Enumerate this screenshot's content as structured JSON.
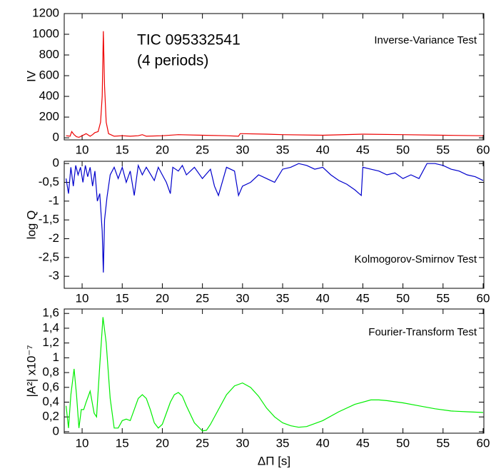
{
  "chart_data": [
    {
      "type": "line",
      "ylabel": "IV",
      "annotations": [
        "TIC 095332541",
        "(4 periods)",
        "Inverse-Variance Test"
      ],
      "xlim": [
        7.77,
        60.09
      ],
      "xticks": [
        10,
        15,
        20,
        25,
        30,
        35,
        40,
        45,
        50,
        55,
        60
      ],
      "ylim": [
        -20,
        1200
      ],
      "yticks": [
        0,
        200,
        400,
        600,
        800,
        1000,
        1200
      ],
      "series": [
        {
          "color": "#ee0000",
          "x": [
            8,
            8.5,
            8.7,
            9,
            9.3,
            9.6,
            10,
            10.5,
            11,
            11.3,
            11.6,
            12,
            12.3,
            12.5,
            12.65,
            12.8,
            13,
            13.3,
            14,
            15,
            16,
            17,
            17.5,
            18,
            20,
            22,
            25,
            28,
            29.5,
            29.7,
            30,
            33,
            35,
            40,
            45,
            50,
            55,
            60
          ],
          "values": [
            20,
            15,
            60,
            30,
            10,
            5,
            20,
            40,
            15,
            30,
            50,
            60,
            150,
            400,
            1030,
            500,
            150,
            40,
            15,
            20,
            15,
            20,
            30,
            15,
            20,
            30,
            25,
            20,
            15,
            40,
            40,
            35,
            30,
            25,
            35,
            30,
            25,
            20
          ]
        }
      ]
    },
    {
      "type": "line",
      "ylabel": "log Q",
      "annotations": [
        "Kolmogorov-Smirnov Test"
      ],
      "xlim": [
        7.77,
        60.09
      ],
      "xticks": [
        10,
        15,
        20,
        25,
        30,
        35,
        40,
        45,
        50,
        55,
        60
      ],
      "ylim": [
        -3.32,
        0.06
      ],
      "yticks": [
        0,
        {
          "value": -0.5,
          "label": "-0,5"
        },
        -1,
        {
          "value": -1.5,
          "label": "-1,5"
        },
        -2,
        {
          "value": -2.5,
          "label": "-2,5"
        },
        -3
      ],
      "series": [
        {
          "color": "#0000cc",
          "x": [
            8,
            8.3,
            8.6,
            8.9,
            9.2,
            9.5,
            9.8,
            10.1,
            10.4,
            10.7,
            11,
            11.3,
            11.6,
            11.9,
            12.2,
            12.5,
            12.65,
            12.8,
            13.1,
            13.5,
            14,
            14.5,
            15,
            15.5,
            16,
            16.5,
            17,
            17.5,
            18,
            19,
            19.5,
            20,
            20.5,
            21,
            21.3,
            22,
            22.5,
            23,
            24,
            25,
            26,
            26.5,
            27,
            28,
            29,
            29.5,
            30,
            31,
            32,
            33,
            34,
            35,
            36,
            37,
            38,
            39,
            40,
            41,
            42,
            43,
            44,
            44.8,
            45,
            46,
            47,
            48,
            49,
            50,
            51,
            52,
            53,
            54,
            55,
            56,
            57,
            58,
            59,
            60
          ],
          "values": [
            -0.4,
            -0.8,
            -0.1,
            -0.6,
            -0.05,
            -0.3,
            -0.1,
            -0.5,
            -0.05,
            -0.35,
            -0.1,
            -0.6,
            -0.2,
            -1.0,
            -0.8,
            -1.8,
            -2.9,
            -1.5,
            -0.9,
            -0.3,
            -0.1,
            -0.4,
            -0.1,
            -0.5,
            -0.2,
            -0.85,
            -0.05,
            -0.3,
            -0.1,
            -0.45,
            -0.1,
            -0.3,
            -0.5,
            -0.8,
            -0.1,
            -0.2,
            -0.05,
            -0.3,
            -0.1,
            -0.4,
            -0.15,
            -0.6,
            -0.85,
            -0.1,
            -0.2,
            -0.85,
            -0.6,
            -0.5,
            -0.3,
            -0.4,
            -0.5,
            -0.15,
            -0.1,
            0,
            -0.05,
            -0.15,
            -0.1,
            -0.3,
            -0.45,
            -0.55,
            -0.7,
            -0.85,
            -0.1,
            -0.15,
            -0.2,
            -0.3,
            -0.25,
            -0.4,
            -0.3,
            -0.4,
            0,
            0,
            -0.05,
            -0.15,
            -0.2,
            -0.3,
            -0.35,
            -0.45
          ]
        }
      ]
    },
    {
      "type": "line",
      "ylabel": "|A²| x10⁻⁷",
      "xlabel": "ΔΠ [s]",
      "annotations": [
        "Fourier-Transform Test"
      ],
      "xlim": [
        7.77,
        60.09
      ],
      "xticks": [
        10,
        15,
        20,
        25,
        30,
        35,
        40,
        45,
        50,
        55,
        60
      ],
      "ylim": [
        -0.02,
        1.66
      ],
      "yticks": [
        0,
        {
          "value": 0.2,
          "label": "0,2"
        },
        {
          "value": 0.4,
          "label": "0,4"
        },
        {
          "value": 0.6,
          "label": "0,6"
        },
        {
          "value": 0.8,
          "label": "0,8"
        },
        1,
        {
          "value": 1.2,
          "label": "1,2"
        },
        {
          "value": 1.4,
          "label": "1,4"
        },
        {
          "value": 1.6,
          "label": "1,6"
        }
      ],
      "series": [
        {
          "color": "#00ee00",
          "x": [
            8,
            8.3,
            8.6,
            9,
            9.3,
            9.6,
            9.9,
            10.2,
            10.5,
            11,
            11.5,
            11.8,
            12.2,
            12.6,
            13,
            13.5,
            14,
            14.5,
            15,
            15.5,
            16,
            16.5,
            17,
            17.5,
            18,
            18.5,
            19,
            19.5,
            20,
            20.5,
            21,
            21.5,
            22,
            22.5,
            23,
            24,
            25,
            25.5,
            26,
            27,
            28,
            29,
            30,
            31,
            32,
            33,
            34,
            35,
            36,
            37,
            38,
            40,
            42,
            44,
            46,
            47,
            48,
            50,
            52,
            54,
            56,
            58,
            60
          ],
          "values": [
            0.35,
            0.05,
            0.5,
            0.85,
            0.5,
            0.05,
            0.3,
            0.3,
            0.4,
            0.55,
            0.25,
            0.2,
            0.9,
            1.55,
            1.2,
            0.45,
            0.05,
            0.05,
            0.15,
            0.17,
            0.15,
            0.3,
            0.45,
            0.5,
            0.45,
            0.3,
            0.12,
            0.05,
            0.1,
            0.25,
            0.4,
            0.5,
            0.53,
            0.48,
            0.35,
            0.12,
            0.01,
            0.02,
            0.1,
            0.3,
            0.5,
            0.62,
            0.66,
            0.6,
            0.48,
            0.32,
            0.2,
            0.12,
            0.08,
            0.06,
            0.07,
            0.15,
            0.27,
            0.37,
            0.43,
            0.43,
            0.42,
            0.39,
            0.35,
            0.31,
            0.28,
            0.27,
            0.26
          ]
        }
      ]
    }
  ]
}
